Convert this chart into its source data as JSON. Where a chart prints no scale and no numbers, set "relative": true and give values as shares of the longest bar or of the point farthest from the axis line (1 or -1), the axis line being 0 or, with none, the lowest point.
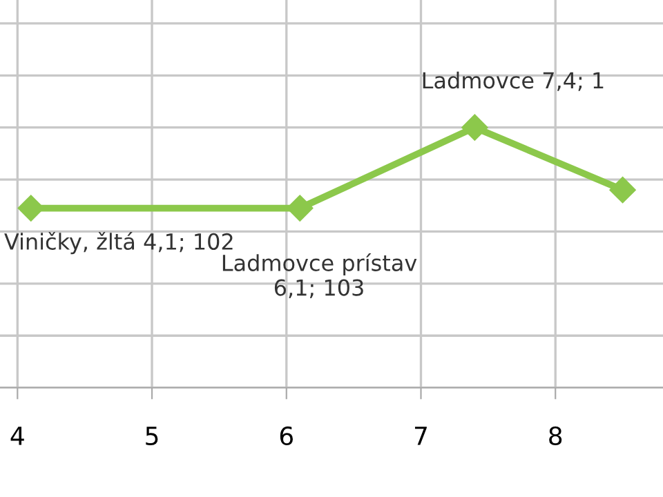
{
  "chart_data": {
    "type": "line",
    "relative": true,
    "x": [
      4.1,
      6.1,
      7.4,
      8.5
    ],
    "series": [
      {
        "color": "#8cc84b",
        "values": [
          0.69,
          0.69,
          1,
          0.76
        ]
      }
    ],
    "xlim": [
      3.87,
      8.8
    ],
    "xticks": [
      4,
      5,
      6,
      7,
      8
    ],
    "tick_labels": "x",
    "grid": true,
    "marker": "diamond",
    "line_style": "solid",
    "annotations": [
      {
        "text": "Viničky, žltá 4,1; 102",
        "x": 4.1,
        "y": 0.69
      },
      {
        "text": "Ladmovce prístav\n6,1; 103",
        "x": 6.1,
        "y": 0.69
      },
      {
        "text": "Ladmovce 7,4; 1",
        "x": 7.4,
        "y": 1
      }
    ]
  }
}
